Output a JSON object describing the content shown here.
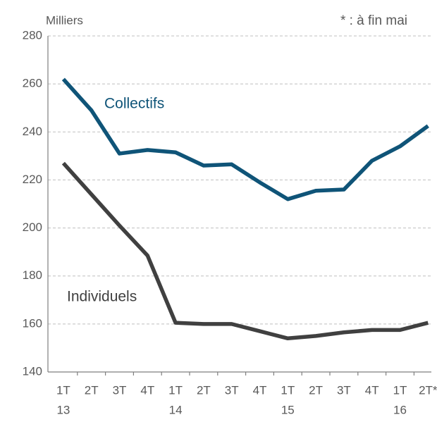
{
  "chart_data": {
    "type": "line",
    "unit_label": "Milliers",
    "note": "* : à fin  mai",
    "categories": [
      "1T",
      "2T",
      "3T",
      "4T",
      "1T",
      "2T",
      "3T",
      "4T",
      "1T",
      "2T",
      "3T",
      "4T",
      "1T",
      "2T*"
    ],
    "years": [
      "13",
      null,
      null,
      null,
      "14",
      null,
      null,
      null,
      "15",
      null,
      null,
      null,
      "16",
      null
    ],
    "series": [
      {
        "name": "Collectifs",
        "color": "#0f5478",
        "values": [
          262,
          249,
          231,
          232.5,
          231.5,
          226,
          226.5,
          219,
          212,
          215.5,
          216,
          228,
          234,
          242.5
        ]
      },
      {
        "name": "Individuels",
        "color": "#404040",
        "values": [
          227,
          214,
          201,
          188.5,
          160.5,
          160,
          160,
          157,
          154,
          155,
          156.5,
          157.5,
          157.5,
          160.5
        ]
      }
    ],
    "ylim": [
      140,
      280
    ],
    "yticks": [
      140,
      160,
      180,
      200,
      220,
      240,
      260,
      280
    ],
    "grid": true
  }
}
